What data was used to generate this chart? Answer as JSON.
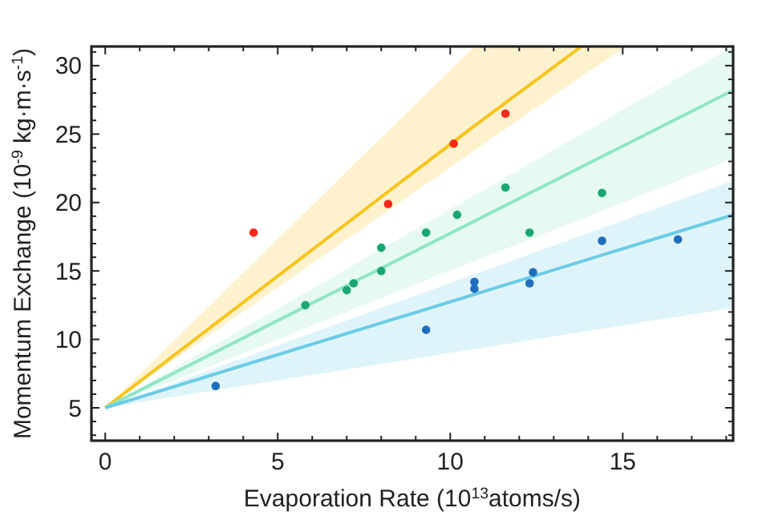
{
  "chart_data": {
    "type": "scatter",
    "xlabel": "Evaporation Rate (10$^{13}$atoms/s)",
    "ylabel": "Momentum Exchange (10$^{-9}$ kg·m·s$^{-1}$)",
    "xlim": [
      -0.4,
      18.2
    ],
    "ylim": [
      2.6,
      31.4
    ],
    "xticks": [
      0,
      {
        "value": 1,
        "label": null
      },
      {
        "value": 2,
        "label": null
      },
      {
        "value": 3,
        "label": null
      },
      {
        "value": 4,
        "label": null
      },
      5,
      {
        "value": 6,
        "label": null
      },
      {
        "value": 7,
        "label": null
      },
      {
        "value": 8,
        "label": null
      },
      {
        "value": 9,
        "label": null
      },
      10,
      {
        "value": 11,
        "label": null
      },
      {
        "value": 12,
        "label": null
      },
      {
        "value": 13,
        "label": null
      },
      {
        "value": 14,
        "label": null
      },
      15,
      {
        "value": 16,
        "label": null
      },
      {
        "value": 17,
        "label": null
      },
      {
        "value": 18,
        "label": null
      }
    ],
    "yticks": [
      {
        "value": 3,
        "label": null
      },
      {
        "value": 4,
        "label": null
      },
      5,
      {
        "value": 6,
        "label": null
      },
      {
        "value": 7,
        "label": null
      },
      {
        "value": 8,
        "label": null
      },
      {
        "value": 9,
        "label": null
      },
      10,
      {
        "value": 11,
        "label": null
      },
      {
        "value": 12,
        "label": null
      },
      {
        "value": 13,
        "label": null
      },
      {
        "value": 14,
        "label": null
      },
      15,
      {
        "value": 16,
        "label": null
      },
      {
        "value": 17,
        "label": null
      },
      {
        "value": 18,
        "label": null
      },
      {
        "value": 19,
        "label": null
      },
      20,
      {
        "value": 21,
        "label": null
      },
      {
        "value": 22,
        "label": null
      },
      {
        "value": 23,
        "label": null
      },
      {
        "value": 24,
        "label": null
      },
      25,
      {
        "value": 26,
        "label": null
      },
      {
        "value": 27,
        "label": null
      },
      {
        "value": 28,
        "label": null
      },
      {
        "value": 29,
        "label": null
      },
      30,
      {
        "value": 31,
        "label": null
      }
    ],
    "grid": false,
    "marker": "circle",
    "series": [
      {
        "type": "line",
        "marker": "none",
        "color": "#f8c41c",
        "x": [
          0,
          10.7,
          13.8,
          15.1
        ],
        "values": [
          5,
          25.6,
          31.4,
          null
        ],
        "upper": [
          5,
          31.4,
          31.4,
          31.4
        ],
        "lower": [
          5,
          23.8,
          29.2,
          31.4
        ]
      },
      {
        "type": "line",
        "marker": "none",
        "color": "#8fe6c2",
        "x": [
          0,
          18.2
        ],
        "values": [
          5,
          28.2
        ],
        "upper": [
          5,
          31.4
        ],
        "lower": [
          5,
          23.2
        ]
      },
      {
        "type": "line",
        "marker": "none",
        "color": "#6ccbe8",
        "x": [
          0,
          18.2
        ],
        "values": [
          5,
          19.1
        ],
        "upper": [
          5,
          21.6
        ],
        "lower": [
          5,
          12.3
        ]
      },
      {
        "color": "#f8291a",
        "x": [
          4.3,
          8.2,
          10.1,
          11.6
        ],
        "values": [
          17.8,
          19.9,
          24.3,
          26.5
        ]
      },
      {
        "color": "#1ba772",
        "x": [
          5.8,
          7.0,
          7.2,
          8.0,
          8.0,
          9.3,
          10.2,
          11.6,
          12.3,
          14.4
        ],
        "values": [
          12.5,
          13.6,
          14.1,
          16.7,
          15.0,
          17.8,
          19.1,
          21.1,
          17.8,
          20.7
        ]
      },
      {
        "color": "#1f6dbd",
        "x": [
          3.2,
          9.3,
          10.7,
          10.7,
          12.3,
          12.4,
          14.4,
          16.6
        ],
        "values": [
          6.6,
          10.7,
          14.2,
          13.7,
          14.1,
          14.9,
          17.2,
          17.3
        ]
      }
    ]
  }
}
